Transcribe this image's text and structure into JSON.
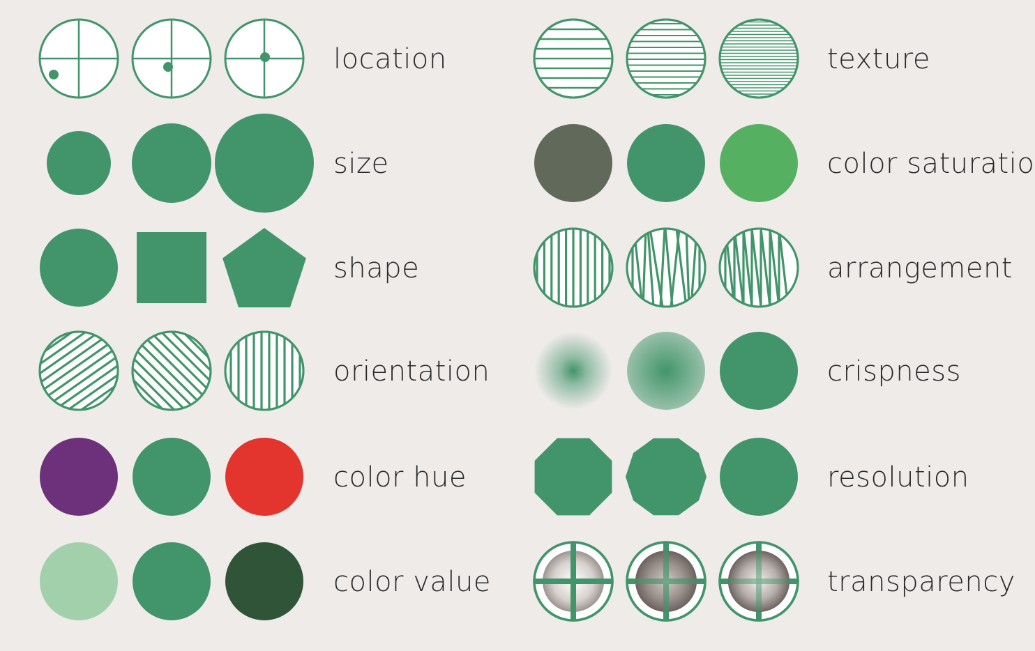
{
  "colors": {
    "background": "#efebe9",
    "primary_green": "#42956a",
    "label_text": "#2a2a2a"
  },
  "left_column": [
    {
      "id": "location",
      "label": "location",
      "kind": "location",
      "fill": "#42956a"
    },
    {
      "id": "size",
      "label": "size",
      "kind": "size",
      "fill": "#42956a"
    },
    {
      "id": "shape",
      "label": "shape",
      "kind": "shape",
      "fill": "#42956a",
      "shapes": [
        "circle-shape",
        "square-shape",
        "pentagon-shape"
      ]
    },
    {
      "id": "orientation",
      "label": "orientation",
      "kind": "orientation",
      "fill": "#42956a"
    },
    {
      "id": "color-hue",
      "label": "color hue",
      "kind": "solid",
      "fills": [
        "#6c317a",
        "#42956a",
        "#e3352d"
      ]
    },
    {
      "id": "color-value",
      "label": "color value",
      "kind": "solid",
      "fills": [
        "#a2d0ab",
        "#42956a",
        "#2f5438"
      ]
    }
  ],
  "right_column": [
    {
      "id": "texture",
      "label": "texture",
      "kind": "texture",
      "fill": "#42956a"
    },
    {
      "id": "color-saturation",
      "label": "color saturation",
      "kind": "solid",
      "fills": [
        "#60695a",
        "#42956a",
        "#56b062"
      ]
    },
    {
      "id": "arrangement",
      "label": "arrangement",
      "kind": "arrangement",
      "fill": "#42956a"
    },
    {
      "id": "crispness",
      "label": "crispness",
      "kind": "crispness",
      "fill": "#42956a"
    },
    {
      "id": "resolution",
      "label": "resolution",
      "kind": "resolution",
      "fill": "#42956a",
      "shapes": [
        "octagon-shape",
        "decagon-shape",
        "circle-shape"
      ]
    },
    {
      "id": "transparency",
      "label": "transparency",
      "kind": "transparency",
      "fill": "#42956a"
    }
  ]
}
